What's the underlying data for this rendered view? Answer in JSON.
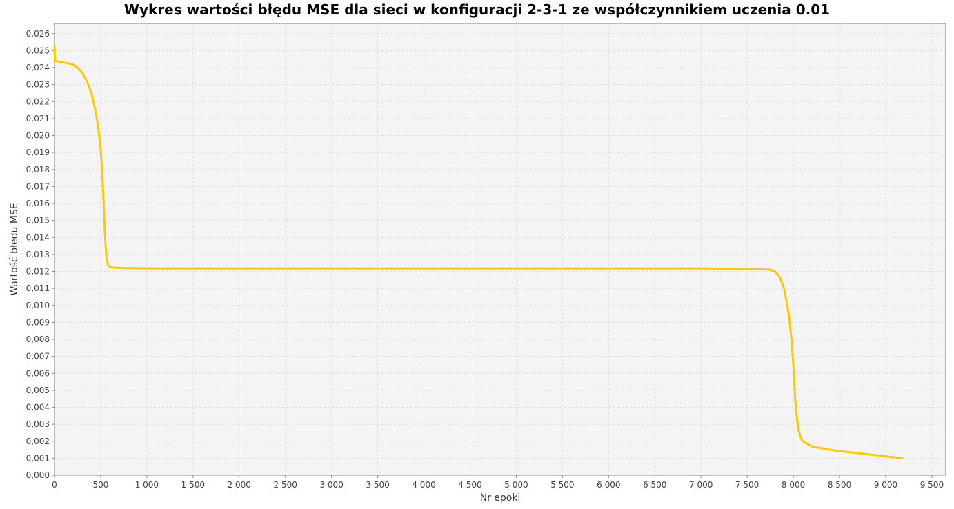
{
  "chart_data": {
    "type": "line",
    "title": "Wykres wartości błędu MSE dla sieci w konfiguracji 2-3-1 ze współczynnikiem uczenia 0.01",
    "xlabel": "Nr epoki",
    "ylabel": "Wartość błędu MSE",
    "xlim": [
      0,
      9650
    ],
    "ylim": [
      0,
      0.0266
    ],
    "x_ticks": [
      0,
      500,
      1000,
      1500,
      2000,
      2500,
      3000,
      3500,
      4000,
      4500,
      5000,
      5500,
      6000,
      6500,
      7000,
      7500,
      8000,
      8500,
      9000,
      9500
    ],
    "x_tick_labels": [
      "0",
      "500",
      "1 000",
      "1 500",
      "2 000",
      "2 500",
      "3 000",
      "3 500",
      "4 000",
      "4 500",
      "5 000",
      "5 500",
      "6 000",
      "6 500",
      "7 000",
      "7 500",
      "8 000",
      "8 500",
      "9 000",
      "9 500"
    ],
    "y_ticks": [
      0,
      0.001,
      0.002,
      0.003,
      0.004,
      0.005,
      0.006,
      0.007,
      0.008,
      0.009,
      0.01,
      0.011,
      0.012,
      0.013,
      0.014,
      0.015,
      0.016,
      0.017,
      0.018,
      0.019,
      0.02,
      0.021,
      0.022,
      0.023,
      0.024,
      0.025,
      0.026
    ],
    "y_tick_labels": [
      "0,000",
      "0,001",
      "0,002",
      "0,003",
      "0,004",
      "0,005",
      "0,006",
      "0,007",
      "0,008",
      "0,009",
      "0,010",
      "0,011",
      "0,012",
      "0,013",
      "0,014",
      "0,015",
      "0,016",
      "0,017",
      "0,018",
      "0,019",
      "0,020",
      "0,021",
      "0,022",
      "0,023",
      "0,024",
      "0,025",
      "0,026"
    ],
    "grid": true,
    "legend": "none",
    "series": [
      {
        "color": "#ffc800",
        "x": [
          0,
          5,
          10,
          50,
          100,
          150,
          200,
          250,
          300,
          350,
          400,
          450,
          480,
          500,
          520,
          540,
          550,
          560,
          570,
          580,
          590,
          600,
          620,
          650,
          700,
          750,
          800,
          900,
          1000,
          1500,
          2000,
          3000,
          4000,
          5000,
          6000,
          7000,
          7500,
          7600,
          7700,
          7750,
          7800,
          7850,
          7900,
          7950,
          7980,
          8000,
          8020,
          8040,
          8060,
          8080,
          8100,
          8150,
          8200,
          8300,
          8400,
          8500,
          8700,
          8900,
          9100,
          9180
        ],
        "y": [
          0.0253,
          0.0244,
          0.0244,
          0.02435,
          0.0243,
          0.02425,
          0.0242,
          0.024,
          0.0237,
          0.0232,
          0.0225,
          0.0213,
          0.0202,
          0.0192,
          0.0175,
          0.015,
          0.0138,
          0.013,
          0.0126,
          0.0124,
          0.01233,
          0.01228,
          0.01225,
          0.01222,
          0.01221,
          0.0122,
          0.0122,
          0.01219,
          0.01218,
          0.01218,
          0.01218,
          0.01218,
          0.01218,
          0.01218,
          0.01218,
          0.01218,
          0.01215,
          0.01213,
          0.01212,
          0.0121,
          0.012,
          0.0117,
          0.011,
          0.0095,
          0.008,
          0.0065,
          0.0045,
          0.0033,
          0.0026,
          0.0022,
          0.002,
          0.00185,
          0.0017,
          0.0016,
          0.0015,
          0.00142,
          0.0013,
          0.00118,
          0.00105,
          0.001
        ]
      }
    ]
  }
}
